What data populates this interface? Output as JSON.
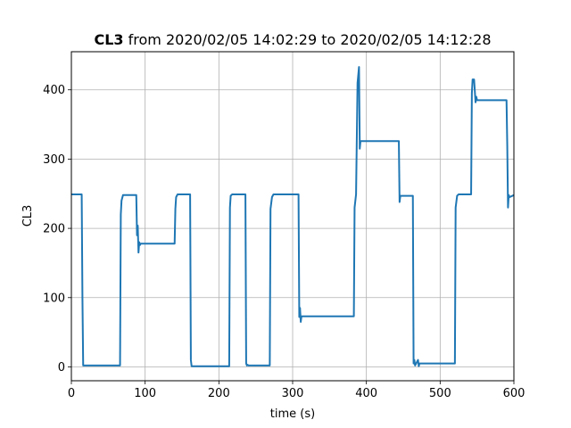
{
  "chart_data": {
    "type": "line",
    "title_prefix": "CL3",
    "title_rest": " from 2020/02/05 14:02:29 to 2020/02/05 14:12:28",
    "xlabel": "time (s)",
    "ylabel": "CL3",
    "xlim": [
      0,
      600
    ],
    "ylim": [
      -20,
      455
    ],
    "xticks": [
      0,
      100,
      200,
      300,
      400,
      500,
      600
    ],
    "yticks": [
      0,
      100,
      200,
      300,
      400
    ],
    "grid": true,
    "series": [
      {
        "color": "#1f77b4",
        "x": [
          0,
          14,
          15,
          16,
          66,
          67,
          68,
          70,
          88,
          89,
          90,
          91,
          92,
          93,
          94,
          95,
          140,
          141,
          142,
          144,
          161,
          162,
          163,
          214,
          215,
          216,
          218,
          236,
          237,
          238,
          239,
          240,
          269,
          270,
          272,
          274,
          308,
          309,
          310,
          311,
          312,
          313,
          383,
          384,
          386,
          388,
          390,
          391,
          392,
          394,
          444,
          445,
          446,
          447,
          463,
          464,
          465,
          466,
          470,
          471,
          472,
          473,
          520,
          521,
          523,
          525,
          542,
          543,
          544,
          546,
          548,
          549,
          550,
          552,
          590,
          591,
          592,
          593,
          594,
          600
        ],
        "y": [
          249,
          249,
          100,
          2,
          2,
          220,
          240,
          248,
          248,
          190,
          204,
          165,
          180,
          176,
          178,
          178,
          178,
          228,
          245,
          249,
          249,
          10,
          1,
          1,
          230,
          247,
          249,
          249,
          5,
          2,
          3,
          2,
          2,
          228,
          245,
          249,
          249,
          72,
          85,
          65,
          73,
          73,
          73,
          230,
          249,
          410,
          433,
          315,
          326,
          326,
          326,
          238,
          247,
          247,
          247,
          5,
          10,
          2,
          10,
          1,
          5,
          5,
          5,
          230,
          247,
          249,
          249,
          395,
          415,
          415,
          382,
          390,
          385,
          385,
          385,
          320,
          230,
          248,
          245,
          248
        ]
      }
    ]
  }
}
